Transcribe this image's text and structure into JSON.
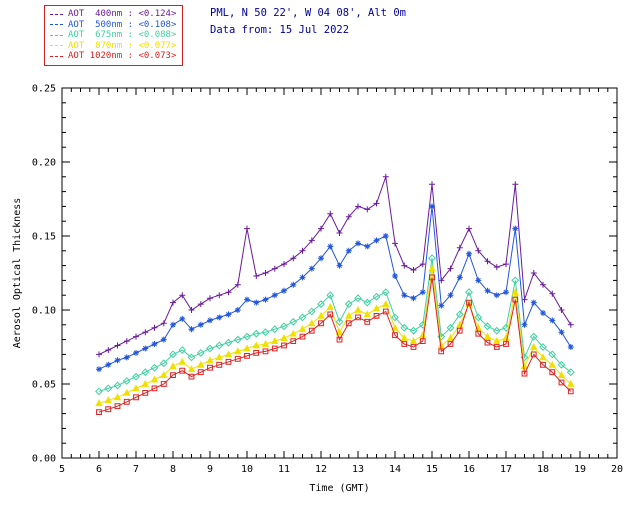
{
  "header": {
    "line1": "PML, N 50 22', W 04 08', Alt 0m",
    "line2": "Data from: 15 Jul 2022",
    "color": "#000099"
  },
  "legend": {
    "items": [
      {
        "label": "AOT  400nm :",
        "value": "<0.124>",
        "color": "#6a1b9a"
      },
      {
        "label": "AOT  500nm :",
        "value": "<0.108>",
        "color": "#2255dd"
      },
      {
        "label": "AOT  675nm :",
        "value": "<0.088>",
        "color": "#40d0a0"
      },
      {
        "label": "AOT  870nm :",
        "value": "<0.077>",
        "color": "#f0e000"
      },
      {
        "label": "AOT 1020nm :",
        "value": "<0.073>",
        "color": "#dd2222"
      }
    ],
    "border_color": "#cc2222"
  },
  "chart_data": {
    "type": "line",
    "title": "",
    "xlabel": "Time (GMT)",
    "ylabel": "Aerosol Optical Thickness",
    "xlim": [
      5,
      20
    ],
    "ylim": [
      0,
      0.25
    ],
    "xticks": [
      5,
      6,
      7,
      8,
      9,
      10,
      11,
      12,
      13,
      14,
      15,
      16,
      17,
      18,
      19,
      20
    ],
    "yticks": [
      0,
      0.05,
      0.1,
      0.15,
      0.2,
      0.25
    ],
    "ytick_labels": [
      "0.00",
      "0.05",
      "0.10",
      "0.15",
      "0.20",
      "0.25"
    ],
    "grid": false,
    "legend_position": "top-left-outside",
    "x": [
      6,
      6.25,
      6.5,
      6.75,
      7,
      7.25,
      7.5,
      7.75,
      8,
      8.25,
      8.5,
      8.75,
      9,
      9.25,
      9.5,
      9.75,
      10,
      10.25,
      10.5,
      10.75,
      11,
      11.25,
      11.5,
      11.75,
      12,
      12.25,
      12.5,
      12.75,
      13,
      13.25,
      13.5,
      13.75,
      14,
      14.25,
      14.5,
      14.75,
      15,
      15.25,
      15.5,
      15.75,
      16,
      16.25,
      16.5,
      16.75,
      17,
      17.25,
      17.5,
      17.75,
      18,
      18.25,
      18.5,
      18.75
    ],
    "series": [
      {
        "name": "AOT 400nm",
        "mean": "<0.124>",
        "color": "#6a1b9a",
        "marker": "plus",
        "values": [
          0.07,
          0.073,
          0.076,
          0.079,
          0.082,
          0.085,
          0.088,
          0.091,
          0.105,
          0.11,
          0.1,
          0.104,
          0.108,
          0.11,
          0.112,
          0.117,
          0.155,
          0.123,
          0.125,
          0.128,
          0.131,
          0.135,
          0.14,
          0.147,
          0.155,
          0.165,
          0.152,
          0.163,
          0.17,
          0.168,
          0.172,
          0.19,
          0.145,
          0.13,
          0.127,
          0.131,
          0.185,
          0.12,
          0.128,
          0.142,
          0.155,
          0.14,
          0.133,
          0.129,
          0.131,
          0.185,
          0.107,
          0.125,
          0.117,
          0.111,
          0.1,
          0.09
        ]
      },
      {
        "name": "AOT 500nm",
        "mean": "<0.108>",
        "color": "#2255dd",
        "marker": "asterisk",
        "values": [
          0.06,
          0.063,
          0.066,
          0.068,
          0.071,
          0.074,
          0.077,
          0.08,
          0.09,
          0.094,
          0.087,
          0.09,
          0.093,
          0.095,
          0.097,
          0.1,
          0.107,
          0.105,
          0.107,
          0.11,
          0.113,
          0.117,
          0.122,
          0.128,
          0.135,
          0.143,
          0.13,
          0.14,
          0.145,
          0.143,
          0.147,
          0.15,
          0.123,
          0.11,
          0.108,
          0.112,
          0.17,
          0.103,
          0.11,
          0.122,
          0.138,
          0.12,
          0.113,
          0.11,
          0.112,
          0.155,
          0.09,
          0.105,
          0.098,
          0.093,
          0.085,
          0.075
        ]
      },
      {
        "name": "AOT 675nm",
        "mean": "<0.088>",
        "color": "#40d0a0",
        "marker": "diamond",
        "values": [
          0.045,
          0.047,
          0.049,
          0.052,
          0.055,
          0.058,
          0.061,
          0.064,
          0.07,
          0.073,
          0.068,
          0.071,
          0.074,
          0.076,
          0.078,
          0.08,
          0.082,
          0.084,
          0.085,
          0.087,
          0.089,
          0.092,
          0.095,
          0.099,
          0.104,
          0.11,
          0.092,
          0.104,
          0.108,
          0.105,
          0.109,
          0.112,
          0.095,
          0.088,
          0.086,
          0.09,
          0.135,
          0.082,
          0.088,
          0.097,
          0.112,
          0.095,
          0.089,
          0.086,
          0.088,
          0.12,
          0.068,
          0.082,
          0.075,
          0.07,
          0.063,
          0.058
        ]
      },
      {
        "name": "AOT 870nm",
        "mean": "<0.077>",
        "color": "#f0e000",
        "marker": "triangle",
        "values": [
          0.037,
          0.039,
          0.041,
          0.044,
          0.047,
          0.05,
          0.053,
          0.056,
          0.062,
          0.065,
          0.06,
          0.063,
          0.066,
          0.068,
          0.07,
          0.072,
          0.074,
          0.076,
          0.077,
          0.079,
          0.081,
          0.084,
          0.087,
          0.091,
          0.096,
          0.102,
          0.085,
          0.096,
          0.1,
          0.097,
          0.101,
          0.104,
          0.088,
          0.081,
          0.079,
          0.083,
          0.128,
          0.076,
          0.081,
          0.09,
          0.104,
          0.088,
          0.082,
          0.079,
          0.081,
          0.112,
          0.062,
          0.075,
          0.068,
          0.063,
          0.056,
          0.05
        ]
      },
      {
        "name": "AOT 1020nm",
        "mean": "<0.073>",
        "color": "#dd2222",
        "marker": "square",
        "values": [
          0.031,
          0.033,
          0.035,
          0.038,
          0.041,
          0.044,
          0.047,
          0.05,
          0.056,
          0.059,
          0.055,
          0.058,
          0.061,
          0.063,
          0.065,
          0.067,
          0.069,
          0.071,
          0.072,
          0.074,
          0.076,
          0.079,
          0.082,
          0.086,
          0.091,
          0.097,
          0.08,
          0.091,
          0.095,
          0.092,
          0.096,
          0.099,
          0.083,
          0.077,
          0.075,
          0.079,
          0.122,
          0.072,
          0.077,
          0.086,
          0.105,
          0.084,
          0.078,
          0.075,
          0.077,
          0.107,
          0.057,
          0.07,
          0.063,
          0.058,
          0.051,
          0.045
        ]
      }
    ]
  }
}
